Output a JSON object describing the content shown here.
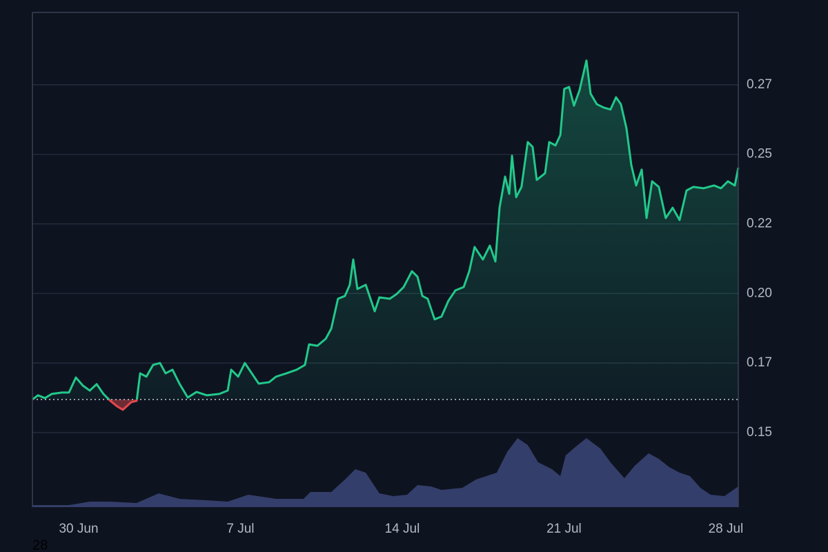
{
  "chart_data": {
    "type": "line",
    "color": "#22c98a",
    "down_color": "#e5484d",
    "baseline": 0.1619,
    "grid": true,
    "annotation": "28",
    "xlim": [
      -2,
      28.54
    ],
    "xticks": [
      {
        "value": 0,
        "label": "30 Jun"
      },
      {
        "value": 7,
        "label": "7 Jul"
      },
      {
        "value": 14,
        "label": "14 Jul"
      },
      {
        "value": 21,
        "label": "21 Jul"
      },
      {
        "value": 28,
        "label": "28 Jul"
      }
    ],
    "ylim": [
      0.1232,
      0.301
    ],
    "yticks": [
      {
        "value": 0.275,
        "label": "0.27"
      },
      {
        "value": 0.25,
        "label": "0.25"
      },
      {
        "value": 0.225,
        "label": "0.22"
      },
      {
        "value": 0.2,
        "label": "0.20"
      },
      {
        "value": 0.175,
        "label": "0.17"
      },
      {
        "value": 0.15,
        "label": "0.15"
      }
    ],
    "y2lim": [
      0,
      100
    ],
    "x": [
      -2.0,
      -1.76,
      -1.46,
      -1.16,
      -0.72,
      -0.42,
      -0.12,
      0.18,
      0.48,
      0.78,
      1.07,
      1.37,
      1.67,
      1.91,
      2.27,
      2.51,
      2.66,
      2.93,
      3.22,
      3.52,
      3.76,
      4.06,
      4.36,
      4.72,
      5.1,
      5.55,
      6.09,
      6.45,
      6.6,
      6.9,
      7.19,
      7.49,
      7.79,
      8.24,
      8.54,
      8.99,
      9.43,
      9.79,
      9.97,
      10.33,
      10.69,
      10.93,
      11.22,
      11.52,
      11.73,
      11.88,
      12.06,
      12.42,
      12.81,
      13.01,
      13.46,
      13.76,
      14.06,
      14.42,
      14.66,
      14.87,
      15.1,
      15.4,
      15.7,
      16.0,
      16.3,
      16.66,
      16.9,
      17.13,
      17.49,
      17.79,
      18.03,
      18.21,
      18.45,
      18.63,
      18.75,
      18.93,
      19.16,
      19.43,
      19.64,
      19.82,
      20.18,
      20.36,
      20.63,
      20.84,
      21.01,
      21.22,
      21.43,
      21.67,
      21.97,
      22.15,
      22.42,
      22.72,
      23.01,
      23.25,
      23.46,
      23.7,
      23.91,
      24.12,
      24.36,
      24.57,
      24.81,
      25.1,
      25.4,
      25.7,
      26.0,
      26.3,
      26.6,
      27.04,
      27.49,
      27.79,
      28.09,
      28.39,
      28.54
    ],
    "values": [
      0.1619,
      0.1634,
      0.1624,
      0.1639,
      0.1644,
      0.1644,
      0.1698,
      0.1669,
      0.1651,
      0.1674,
      0.1639,
      0.1614,
      0.1594,
      0.1582,
      0.1609,
      0.1614,
      0.1713,
      0.1701,
      0.1743,
      0.175,
      0.1713,
      0.1726,
      0.1676,
      0.1626,
      0.1646,
      0.1634,
      0.1639,
      0.1651,
      0.1726,
      0.1701,
      0.175,
      0.1713,
      0.1676,
      0.1681,
      0.1701,
      0.1713,
      0.1726,
      0.1743,
      0.1817,
      0.1812,
      0.1837,
      0.1874,
      0.1981,
      0.1991,
      0.2031,
      0.2122,
      0.2016,
      0.2031,
      0.1936,
      0.1986,
      0.1981,
      0.1998,
      0.2023,
      0.208,
      0.206,
      0.1991,
      0.1981,
      0.1907,
      0.1917,
      0.1974,
      0.2011,
      0.2023,
      0.208,
      0.2167,
      0.2122,
      0.2172,
      0.2115,
      0.2308,
      0.242,
      0.2358,
      0.2495,
      0.2346,
      0.2383,
      0.2544,
      0.2527,
      0.2408,
      0.2432,
      0.2544,
      0.2532,
      0.2569,
      0.2735,
      0.2742,
      0.2675,
      0.273,
      0.2837,
      0.2718,
      0.268,
      0.2668,
      0.2661,
      0.2705,
      0.268,
      0.2594,
      0.2462,
      0.2388,
      0.2445,
      0.2271,
      0.2403,
      0.2383,
      0.2271,
      0.2308,
      0.2264,
      0.237,
      0.2383,
      0.2378,
      0.2388,
      0.2378,
      0.2403,
      0.2388,
      0.2452
    ],
    "volume": {
      "type": "area",
      "axis": "y2",
      "color": "#3b4678",
      "x": [
        -2.0,
        -0.42,
        0.48,
        1.37,
        2.51,
        3.46,
        4.36,
        5.55,
        6.45,
        7.34,
        8.54,
        9.73,
        10.03,
        10.93,
        11.52,
        11.97,
        12.42,
        13.01,
        13.61,
        14.21,
        14.66,
        15.25,
        15.7,
        16.6,
        17.19,
        18.09,
        18.54,
        18.99,
        19.43,
        19.88,
        20.48,
        20.84,
        21.07,
        21.52,
        21.97,
        22.57,
        23.01,
        23.61,
        24.06,
        24.66,
        25.1,
        25.55,
        26.0,
        26.45,
        26.9,
        27.34,
        27.94,
        28.54
      ],
      "values": [
        3,
        3,
        8,
        8,
        6,
        20,
        12,
        10,
        8,
        18,
        12,
        12,
        22,
        22,
        40,
        55,
        50,
        20,
        16,
        18,
        32,
        30,
        25,
        28,
        40,
        50,
        80,
        100,
        90,
        65,
        55,
        45,
        75,
        88,
        100,
        85,
        65,
        42,
        60,
        78,
        70,
        58,
        50,
        45,
        28,
        18,
        16,
        30
      ]
    }
  }
}
